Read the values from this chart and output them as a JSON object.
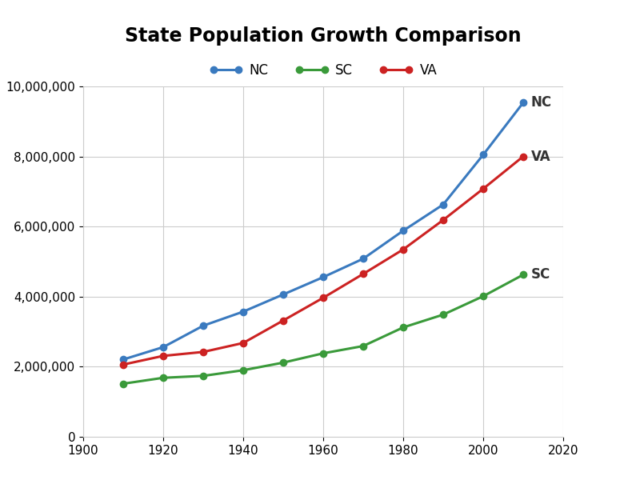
{
  "title": "State Population Growth Comparison",
  "years": [
    1910,
    1920,
    1930,
    1940,
    1950,
    1960,
    1970,
    1980,
    1990,
    2000,
    2010
  ],
  "NC": [
    2206287,
    2559123,
    3170276,
    3571623,
    4061929,
    4556155,
    5082059,
    5881766,
    6628637,
    8049313,
    9535483
  ],
  "SC": [
    1515400,
    1683724,
    1738765,
    1899804,
    2117027,
    2382594,
    2590516,
    3121820,
    3486703,
    4012012,
    4625364
  ],
  "VA": [
    2061612,
    2309187,
    2421851,
    2677773,
    3318680,
    3966949,
    4648494,
    5346818,
    6187358,
    7078515,
    8001024
  ],
  "NC_color": "#3a7abf",
  "SC_color": "#3a9a3a",
  "VA_color": "#cc2222",
  "background_color": "#ffffff",
  "grid_color": "#cccccc",
  "ylim": [
    0,
    10000000
  ],
  "xlim": [
    1900,
    2020
  ],
  "title_fontsize": 17,
  "label_fontsize": 12,
  "tick_fontsize": 11,
  "legend_fontsize": 12,
  "linewidth": 2.2,
  "markersize": 6,
  "yticks": [
    0,
    2000000,
    4000000,
    6000000,
    8000000,
    10000000
  ],
  "xticks": [
    1900,
    1920,
    1940,
    1960,
    1980,
    2000,
    2020
  ]
}
